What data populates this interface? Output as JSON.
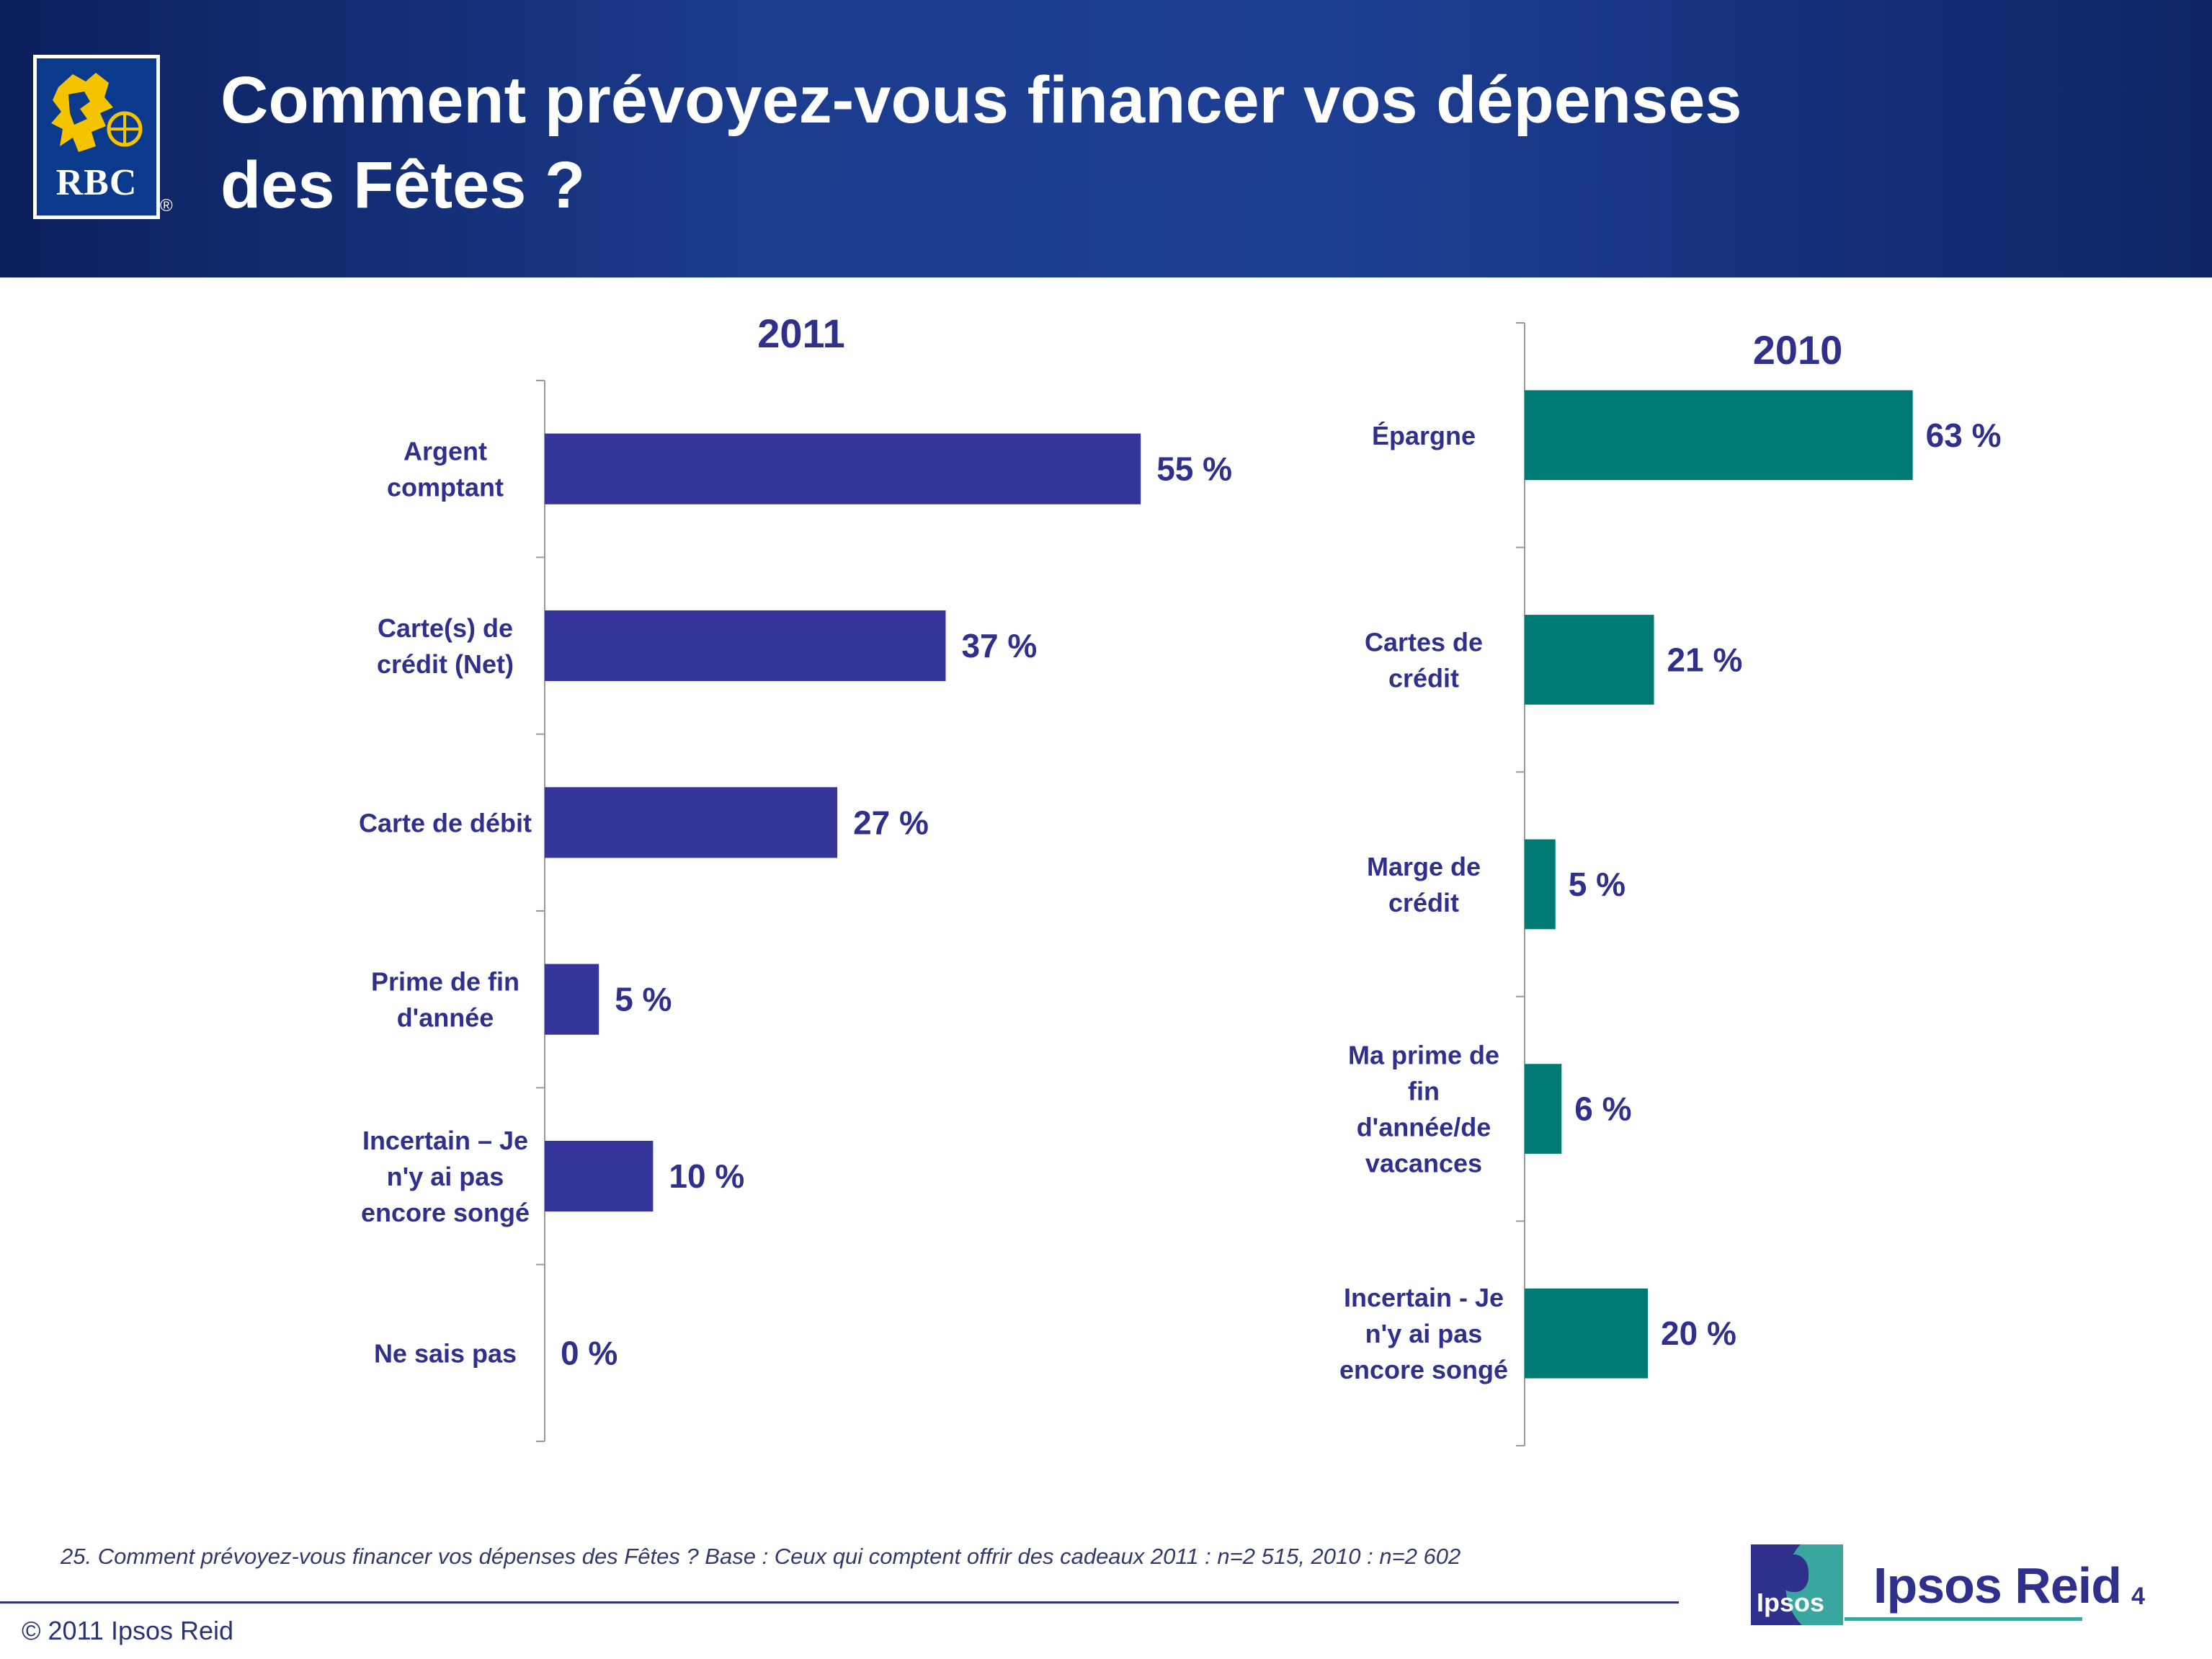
{
  "header": {
    "logo_text": "RBC",
    "logo_reg": "®",
    "title_line1": "Comment prévoyez-vous financer vos dépenses",
    "title_line2": "des Fêtes ?"
  },
  "colors": {
    "header_bg": "#1c3c8e",
    "series_2011": "#35359a",
    "series_2010": "#007a72",
    "text": "#2f2f8c"
  },
  "chart_data": [
    {
      "type": "bar",
      "orientation": "horizontal",
      "title": "2011",
      "categories": [
        [
          "Argent",
          "comptant"
        ],
        [
          "Carte(s) de",
          "crédit (Net)"
        ],
        [
          "Carte de débit"
        ],
        [
          "Prime de fin",
          "d'année"
        ],
        [
          "Incertain – Je",
          "n'y ai pas",
          "encore songé"
        ],
        [
          "Ne sais pas"
        ]
      ],
      "values": [
        55,
        37,
        27,
        5,
        10,
        0
      ],
      "labels": [
        "55 %",
        "37 %",
        "27 %",
        "5 %",
        "10 %",
        "0 %"
      ],
      "unit": "%",
      "xlim": [
        0,
        100
      ],
      "color": "#35359a",
      "grid": false
    },
    {
      "type": "bar",
      "orientation": "horizontal",
      "title": "2010",
      "categories": [
        [
          "Épargne"
        ],
        [
          "Cartes de",
          "crédit"
        ],
        [
          "Marge de",
          "crédit"
        ],
        [
          "Ma prime de",
          "fin",
          "d'année/de",
          "vacances"
        ],
        [
          "Incertain - Je",
          "n'y ai pas",
          "encore songé"
        ]
      ],
      "values": [
        63,
        21,
        5,
        6,
        20
      ],
      "labels": [
        "63 %",
        "21 %",
        "5 %",
        "6 %",
        "20 %"
      ],
      "unit": "%",
      "xlim": [
        0,
        100
      ],
      "color": "#007a72",
      "grid": false
    }
  ],
  "footnote": "25. Comment prévoyez-vous financer vos dépenses des Fêtes ?  Base : Ceux qui comptent offrir des cadeaux 2011 : n=2 515, 2010 : n=2 602",
  "footer": {
    "copyright": "© 2011 Ipsos Reid",
    "brand_small": "Ipsos",
    "brand_large": "Ipsos Reid",
    "page_number": "4"
  }
}
